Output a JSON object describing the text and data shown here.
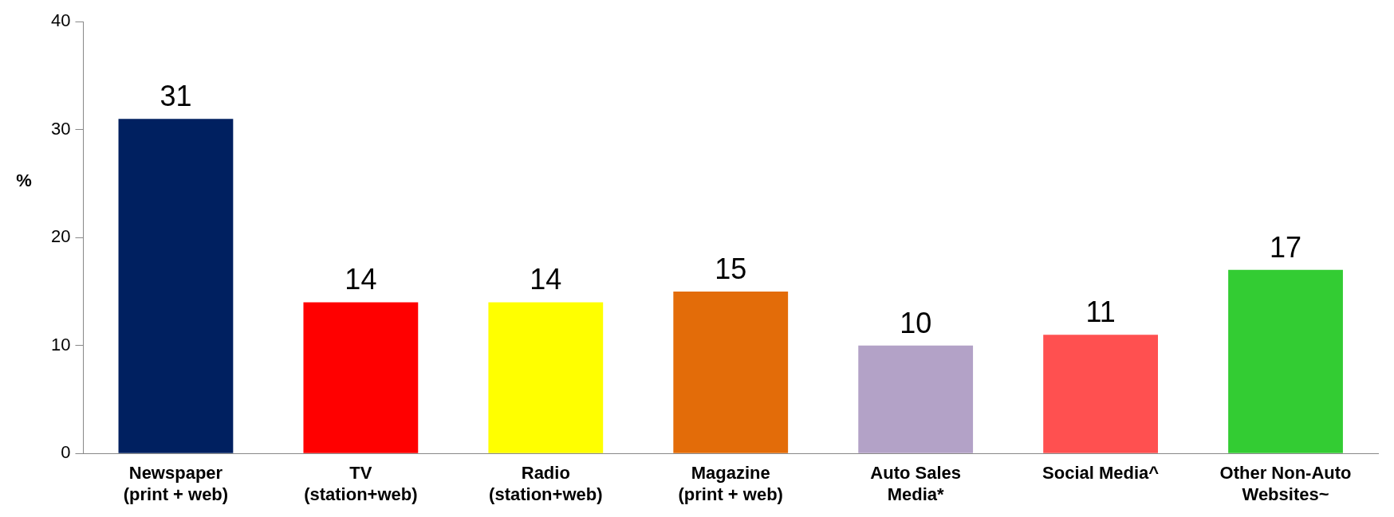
{
  "chart_data": {
    "type": "bar",
    "ylabel": "%",
    "categories": [
      "Newspaper\n(print + web)",
      "TV\n(station+web)",
      "Radio\n(station+web)",
      "Magazine\n(print + web)",
      "Auto Sales\nMedia*",
      "Social Media^",
      "Other Non-Auto\nWebsites~"
    ],
    "values": [
      31,
      14,
      14,
      15,
      10,
      11,
      17
    ],
    "colors": [
      "#002060",
      "#ff0000",
      "#ffff00",
      "#e36c09",
      "#b3a2c7",
      "#ff5050",
      "#33cc33"
    ],
    "ylim": [
      0,
      40
    ],
    "yticks": [
      0,
      10,
      20,
      30,
      40
    ],
    "grid": false,
    "legend": false,
    "data_labels": true
  }
}
